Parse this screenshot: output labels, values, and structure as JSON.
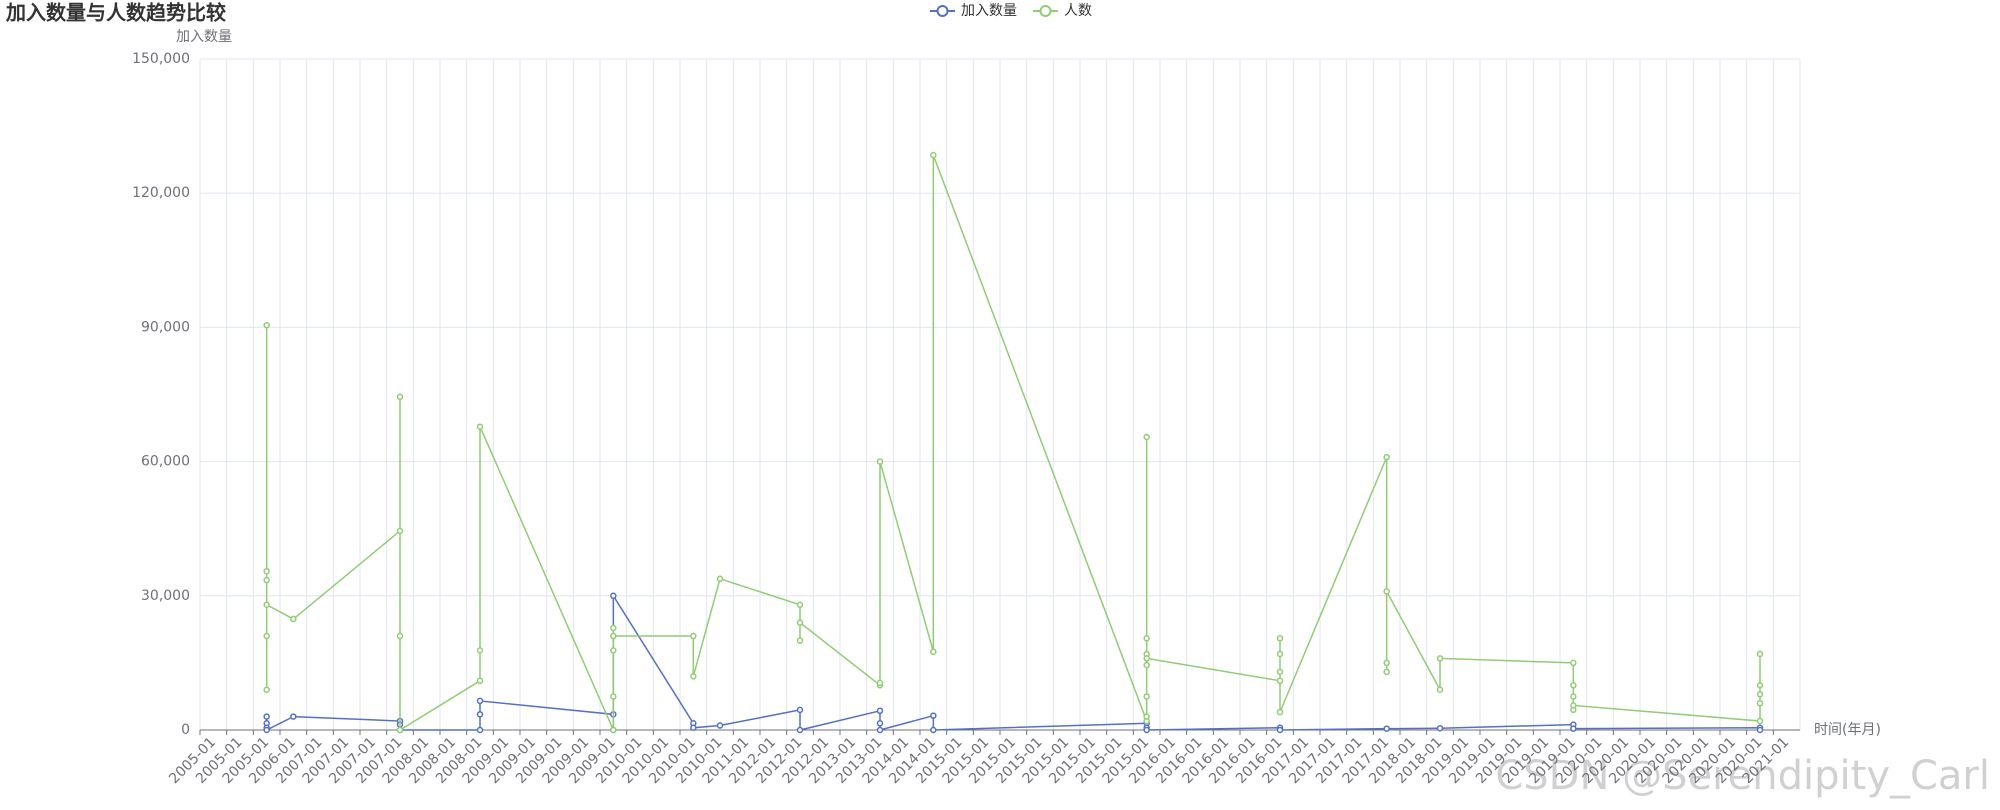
{
  "chart_data": {
    "type": "line",
    "title": "加入数量与人数趋势比较",
    "y_axis_label": "加入数量",
    "x_axis_label": "时间(年月)",
    "watermark": "CSDN @Serendipity_Carl",
    "categories": [
      "2005-01",
      "2005-01",
      "2005-01",
      "2006-01",
      "2007-01",
      "2007-01",
      "2007-01",
      "2007-01",
      "2008-01",
      "2008-01",
      "2008-01",
      "2009-01",
      "2009-01",
      "2009-01",
      "2009-01",
      "2009-01",
      "2010-01",
      "2010-01",
      "2010-01",
      "2010-01",
      "2011-01",
      "2012-01",
      "2012-01",
      "2012-01",
      "2013-01",
      "2013-01",
      "2014-01",
      "2014-01",
      "2015-01",
      "2015-01",
      "2015-01",
      "2015-01",
      "2015-01",
      "2015-01",
      "2015-01",
      "2015-01",
      "2016-01",
      "2016-01",
      "2016-01",
      "2016-01",
      "2016-01",
      "2017-01",
      "2017-01",
      "2017-01",
      "2017-01",
      "2018-01",
      "2018-01",
      "2019-01",
      "2019-01",
      "2019-01",
      "2019-01",
      "2019-01",
      "2020-01",
      "2020-01",
      "2020-01",
      "2020-01",
      "2020-01",
      "2020-01",
      "2020-01",
      "2021-01"
    ],
    "ylim": [
      0,
      150000
    ],
    "yticks": [
      0,
      {
        "value": 30000,
        "label": "30,000"
      },
      {
        "value": 60000,
        "label": "60,000"
      },
      {
        "value": 90000,
        "label": "90,000"
      },
      {
        "value": 120000,
        "label": "120,000"
      },
      {
        "value": 150000,
        "label": "150,000"
      }
    ],
    "grid": true,
    "legend_position": "top",
    "series": [
      {
        "name": "加入数量",
        "color": "#5470c6",
        "x": [
          2,
          2,
          2,
          2,
          3,
          7,
          7,
          7,
          10,
          10,
          10,
          15,
          15,
          15,
          18,
          18,
          19,
          22,
          22,
          25,
          25,
          25,
          27,
          27,
          35,
          35,
          35,
          40,
          40,
          44,
          46,
          51,
          51,
          58,
          58
        ],
        "values": [
          3000,
          1500,
          500,
          0,
          3000,
          2000,
          1200,
          0,
          0,
          3500,
          6500,
          3500,
          0,
          30000,
          1500,
          500,
          1000,
          4500,
          0,
          4300,
          1500,
          0,
          3200,
          0,
          1500,
          500,
          0,
          500,
          0,
          300,
          400,
          1200,
          300,
          500,
          0
        ]
      },
      {
        "name": "人数",
        "color": "#91cc75",
        "x": [
          2,
          2,
          2,
          2,
          2,
          2,
          3,
          7,
          7,
          7,
          7,
          10,
          10,
          10,
          15,
          15,
          15,
          15,
          15,
          18,
          18,
          19,
          22,
          22,
          22,
          25,
          25,
          25,
          27,
          27,
          35,
          35,
          35,
          35,
          35,
          35,
          35,
          35,
          40,
          40,
          40,
          40,
          40,
          44,
          44,
          44,
          44,
          46,
          46,
          51,
          51,
          51,
          51,
          51,
          58,
          58,
          58,
          58,
          58
        ],
        "values": [
          90500,
          35500,
          33500,
          21000,
          9000,
          28000,
          24800,
          44500,
          74500,
          21000,
          0,
          11000,
          17800,
          67800,
          0,
          7500,
          17800,
          22800,
          21000,
          21000,
          12000,
          33800,
          28000,
          20000,
          24000,
          10000,
          10500,
          60000,
          17500,
          128500,
          2000,
          3000,
          65500,
          20500,
          17000,
          14500,
          7500,
          16000,
          11000,
          20500,
          17000,
          13000,
          4000,
          61000,
          15000,
          13000,
          31000,
          9000,
          16000,
          15000,
          10000,
          7500,
          4500,
          5500,
          2000,
          17000,
          10000,
          8000,
          6000
        ]
      }
    ]
  }
}
